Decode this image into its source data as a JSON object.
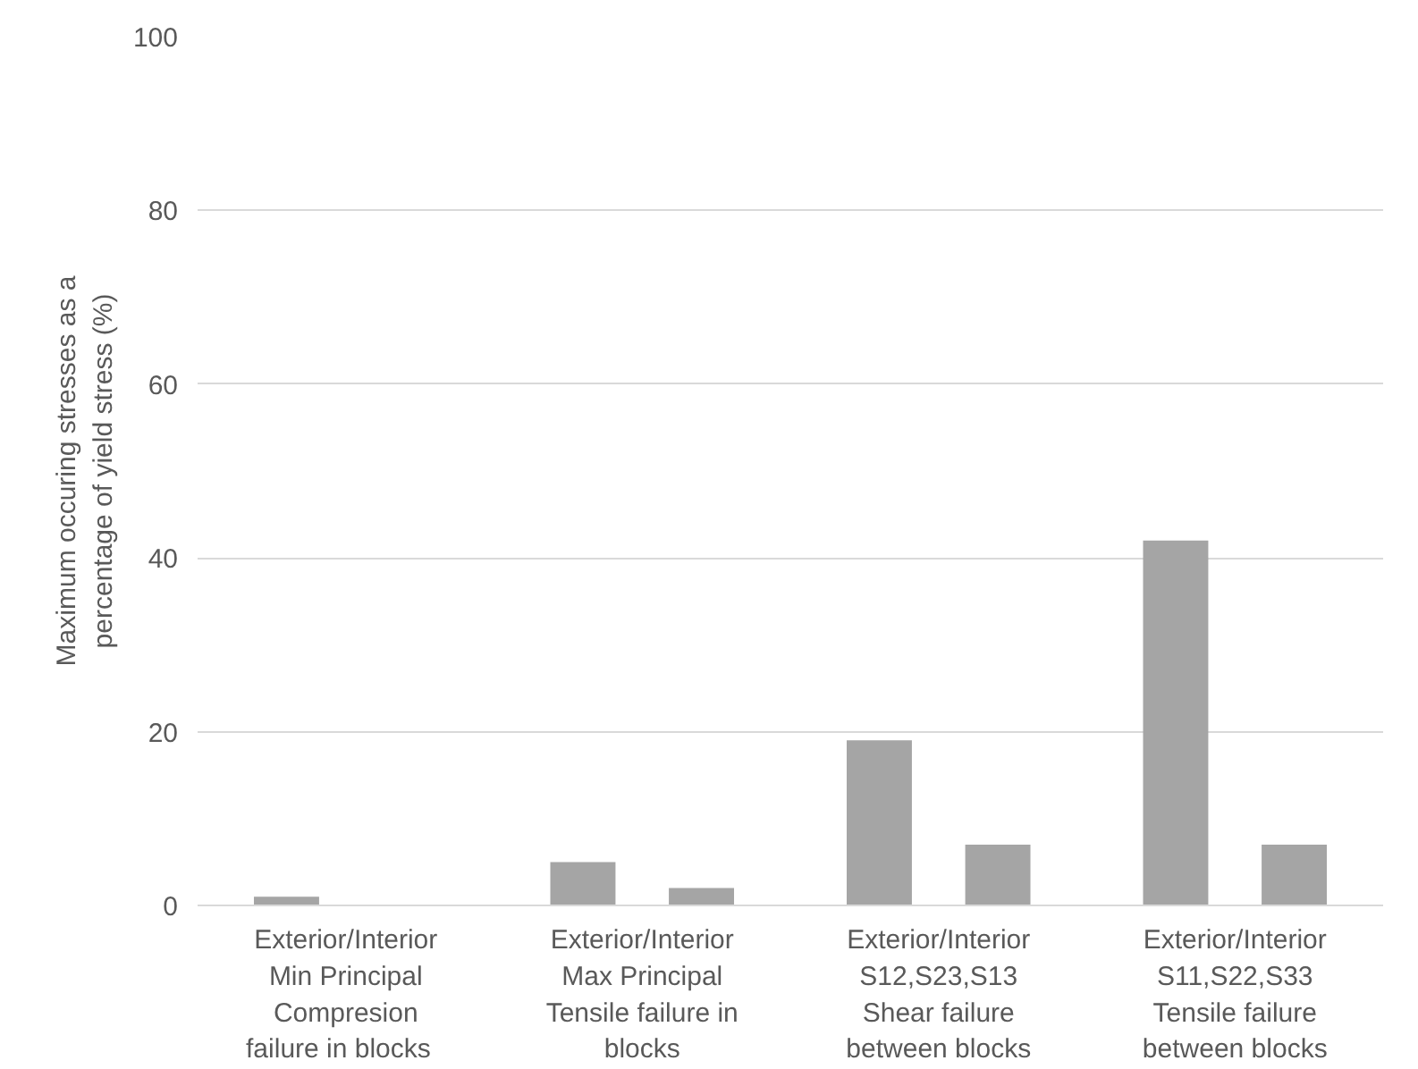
{
  "chart_data": {
    "type": "bar",
    "ylabel": "Maximum occuring stresses as a\npercentage of yield stress (%)",
    "categories": [
      "Exterior/Interior\nMin Principal\nCompresion\nfailure   in blocks",
      "Exterior/Interior\nMax Principal\nTensile failure in\nblocks",
      "Exterior/Interior\nS12,S23,S13\nShear failure\nbetween blocks",
      "Exterior/Interior\nS11,S22,S33\nTensile failure\nbetween blocks"
    ],
    "series": [
      {
        "color": "#a5a5a5",
        "values": [
          1,
          5,
          19,
          42
        ]
      },
      {
        "color": "#a5a5a5",
        "values": [
          0,
          2,
          7,
          7
        ]
      }
    ],
    "ylim": [
      0,
      100
    ],
    "yticks": [
      0,
      20,
      40,
      60,
      80,
      100
    ],
    "grid": "y"
  }
}
